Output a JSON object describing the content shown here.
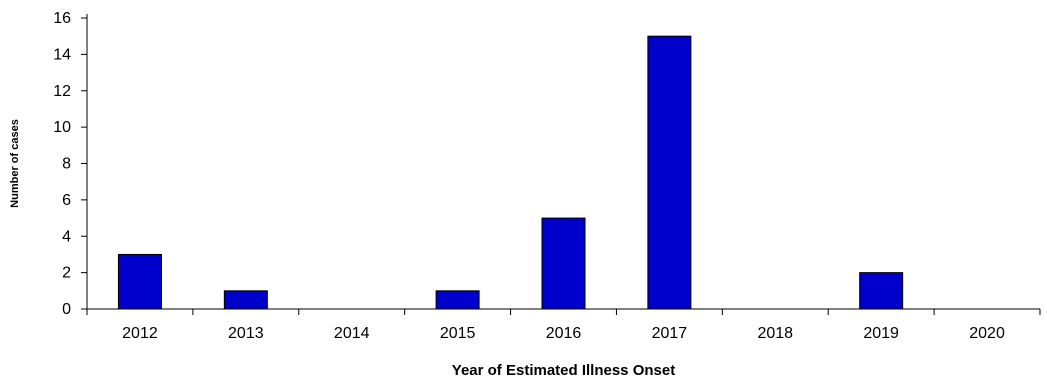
{
  "chart_data": {
    "type": "bar",
    "title": "",
    "xlabel": "Year of Estimated Illness Onset",
    "ylabel": "Number of cases",
    "categories": [
      "2012",
      "2013",
      "2014",
      "2015",
      "2016",
      "2017",
      "2018",
      "2019",
      "2020"
    ],
    "values": [
      3,
      1,
      0,
      1,
      5,
      15,
      0,
      2,
      0
    ],
    "ylim": [
      0,
      16
    ],
    "yticks": [
      0,
      2,
      4,
      6,
      8,
      10,
      12,
      14,
      16
    ],
    "grid": false,
    "legend": "none",
    "bar_color": "#0000CC",
    "bar_edge_color": "#000000"
  }
}
